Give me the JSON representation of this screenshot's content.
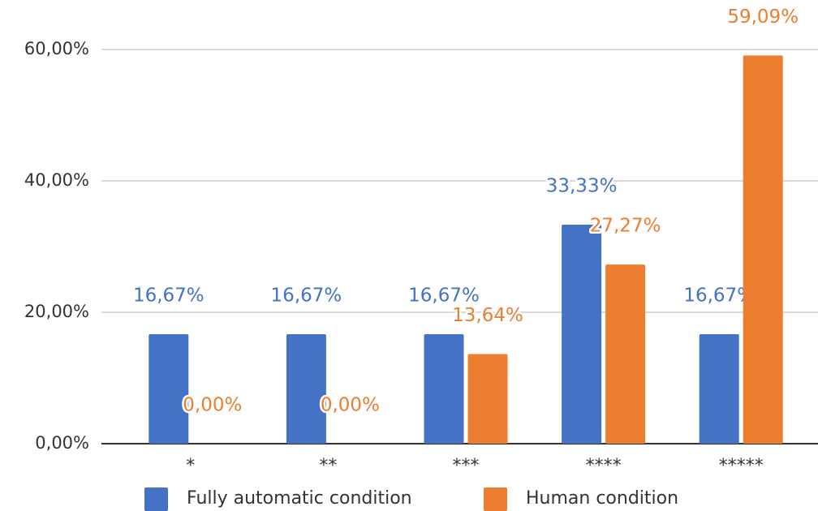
{
  "chart_data": {
    "type": "bar",
    "categories": [
      "*",
      "**",
      "***",
      "****",
      "*****"
    ],
    "series": [
      {
        "name": "Fully automatic condition",
        "color": "#4472c4",
        "values": [
          16.67,
          16.67,
          16.67,
          33.33,
          16.67
        ],
        "value_labels": [
          "16,67%",
          "16,67%",
          "16,67%",
          "33,33%",
          "16,67%"
        ]
      },
      {
        "name": "Human condition",
        "color": "#ed7d31",
        "values": [
          0,
          0,
          13.64,
          27.27,
          59.09
        ],
        "value_labels": [
          "0,00%",
          "0,00%",
          "13,64%",
          "27,27%",
          "59,09%"
        ]
      }
    ],
    "ylim": [
      0,
      60
    ],
    "yticks": [
      {
        "value": 0,
        "label": "0,00%"
      },
      {
        "value": 20,
        "label": "20,00%"
      },
      {
        "value": 40,
        "label": "40,00%"
      },
      {
        "value": 60,
        "label": "60,00%"
      }
    ],
    "grid": true,
    "legend": "bottom"
  }
}
